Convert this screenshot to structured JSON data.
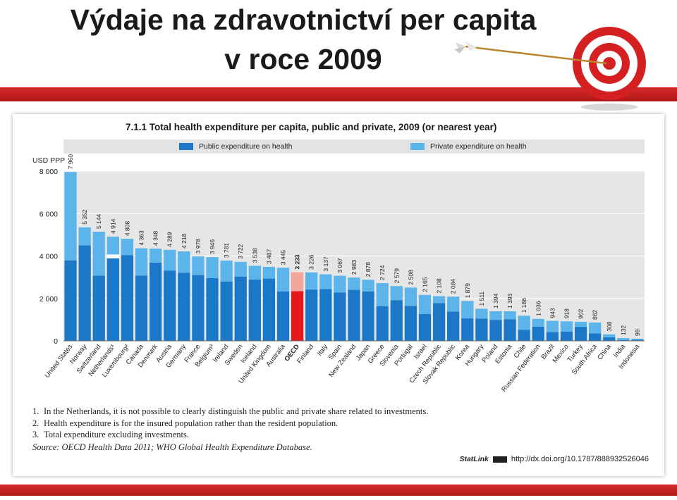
{
  "slide": {
    "title_line1": "Výdaje na zdravotnictví per capita",
    "title_line2": "v roce 2009"
  },
  "colors": {
    "public": "#1b78c9",
    "private": "#5bb5ea",
    "oecd_public": "#e31a1c",
    "oecd_private": "#f4a59a",
    "band": "#ffffff",
    "red_accent": "#c41f1f"
  },
  "figure": {
    "title": "7.1.1 Total health expenditure per capita, public and private, 2009 (or nearest year)",
    "legend": {
      "public": "Public expenditure on health",
      "private": "Private expenditure on health"
    },
    "y_unit": "USD PPP",
    "notes": [
      {
        "num": "1.",
        "text": "In the Netherlands, it is not possible to clearly distinguish the public and private share related to investments."
      },
      {
        "num": "2.",
        "text": "Health expenditure is for the insured population rather than the resident population."
      },
      {
        "num": "3.",
        "text": "Total expenditure excluding investments."
      }
    ],
    "source": "Source: OECD Health Data 2011; WHO Global Health Expenditure Database.",
    "statlink": {
      "brand": "StatLink",
      "url": "http://dx.doi.org/10.1787/888932526046"
    }
  },
  "chart_data": {
    "type": "bar",
    "stacked": true,
    "title": "7.1.1 Total health expenditure per capita, public and private, 2009 (or nearest year)",
    "ylabel": "USD PPP",
    "ylim": [
      0,
      8000
    ],
    "yticks": [
      0,
      2000,
      4000,
      6000,
      8000
    ],
    "ytick_labels": [
      "0",
      "2 000",
      "4 000",
      "6 000",
      "8 000"
    ],
    "grid": true,
    "legend_position": "top",
    "categories": [
      "United States",
      "Norway",
      "Switzerland",
      "Netherlands¹",
      "Luxembourg²",
      "Canada",
      "Denmark",
      "Austria",
      "Germany",
      "France",
      "Belgium³",
      "Ireland",
      "Sweden",
      "Iceland",
      "United Kingdom",
      "Australia",
      "OECD",
      "Finland",
      "Italy",
      "Spain",
      "New Zealand",
      "Japan",
      "Greece",
      "Slovenia",
      "Portugal",
      "Israel",
      "Czech Republic",
      "Slovak Republic",
      "Korea",
      "Hungary",
      "Poland",
      "Estonia",
      "Chile",
      "Russian Federation",
      "Brazil",
      "Mexico",
      "Turkey",
      "South Africa",
      "China",
      "India",
      "Indonesia"
    ],
    "highlight": "OECD",
    "series": [
      {
        "name": "Public expenditure on health",
        "values": [
          3795,
          4501,
          3073,
          3890,
          4045,
          3081,
          3690,
          3315,
          3203,
          3100,
          2960,
          2800,
          3032,
          2891,
          2935,
          2331,
          2340,
          2419,
          2443,
          2285,
          2404,
          2327,
          1634,
          1920,
          1651,
          1265,
          1781,
          1377,
          1059,
          1047,
          990,
          1022,
          523,
          668,
          410,
          439,
          661,
          356,
          165,
          42,
          49
        ]
      },
      {
        "name": "Private expenditure on health",
        "values": [
          4165,
          851,
          2071,
          1024,
          763,
          1282,
          658,
          974,
          1015,
          878,
          986,
          981,
          690,
          647,
          552,
          1114,
          893,
          807,
          694,
          782,
          579,
          551,
          1090,
          659,
          857,
          900,
          327,
          707,
          820,
          464,
          404,
          371,
          663,
          368,
          533,
          479,
          241,
          506,
          143,
          90,
          50
        ]
      },
      {
        "name": "Total",
        "values": [
          7960,
          5352,
          5144,
          4914,
          4808,
          4363,
          4348,
          4289,
          4218,
          3978,
          3946,
          3781,
          3722,
          3538,
          3487,
          3445,
          3233,
          3226,
          3137,
          3067,
          2983,
          2878,
          2724,
          2579,
          2508,
          2165,
          2108,
          2084,
          1879,
          1511,
          1394,
          1393,
          1186,
          1036,
          943,
          918,
          902,
          862,
          308,
          132,
          99
        ]
      }
    ],
    "value_labels": [
      "7 960",
      "5 352",
      "5 144",
      "4 914",
      "4 808",
      "4 363",
      "4 348",
      "4 289",
      "4 218",
      "3 978",
      "3 946",
      "3 781",
      "3 722",
      "3 538",
      "3 487",
      "3 445",
      "3 233",
      "3 226",
      "3 137",
      "3 067",
      "2 983",
      "2 878",
      "2 724",
      "2 579",
      "2 508",
      "2 165",
      "2 108",
      "2 084",
      "1 879",
      "1 511",
      "1 394",
      "1 393",
      "1 186",
      "1 036",
      "943",
      "918",
      "902",
      "862",
      "308",
      "132",
      "99"
    ]
  }
}
